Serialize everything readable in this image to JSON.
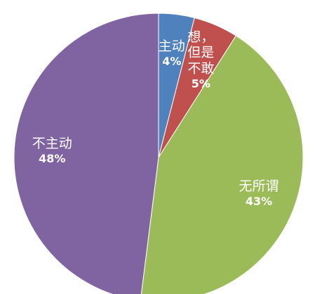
{
  "chart_data": {
    "type": "pie",
    "categories": [
      "主动",
      "想，但是不敢",
      "无所谓",
      "不主动"
    ],
    "values": [
      4,
      5,
      43,
      48
    ],
    "value_labels": [
      "4%",
      "5%",
      "43%",
      "48%"
    ],
    "colors": [
      "#4f81bd",
      "#c0504d",
      "#9bbb59",
      "#8064a2"
    ]
  }
}
